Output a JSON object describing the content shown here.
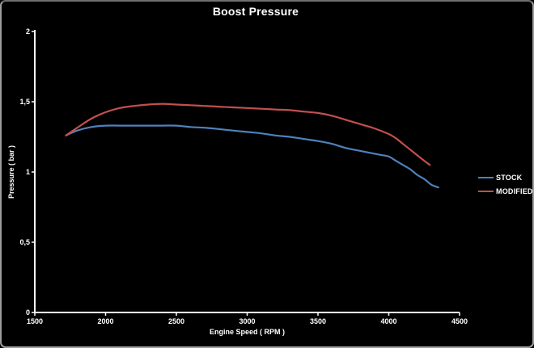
{
  "window": {
    "background": "#000000",
    "border_color": "#9d9d9d",
    "text_color": "#ffffff"
  },
  "chart_data": {
    "type": "line",
    "title": "Boost Pressure",
    "xlabel": "Engine Speed ( RPM )",
    "ylabel": "Pressure ( bar )",
    "xlim": [
      1500,
      4500
    ],
    "ylim": [
      0,
      2
    ],
    "grid": false,
    "legend_position": "right",
    "axis_color": "#ffffff",
    "x_ticks": [
      {
        "value": 1500,
        "label": "1500"
      },
      {
        "value": 2000,
        "label": "2000"
      },
      {
        "value": 2500,
        "label": "2500"
      },
      {
        "value": 3000,
        "label": "3000"
      },
      {
        "value": 3500,
        "label": "3500"
      },
      {
        "value": 4000,
        "label": "4000"
      },
      {
        "value": 4500,
        "label": "4500"
      }
    ],
    "y_ticks": [
      {
        "value": 0,
        "label": "0"
      },
      {
        "value": 0.5,
        "label": "0,5"
      },
      {
        "value": 1,
        "label": "1"
      },
      {
        "value": 1.5,
        "label": "1,5"
      },
      {
        "value": 2,
        "label": "2"
      }
    ],
    "series": [
      {
        "name": "STOCK",
        "color": "#4F81BD",
        "points": [
          [
            1720,
            1.26
          ],
          [
            1800,
            1.295
          ],
          [
            1900,
            1.32
          ],
          [
            2000,
            1.33
          ],
          [
            2100,
            1.33
          ],
          [
            2200,
            1.33
          ],
          [
            2300,
            1.33
          ],
          [
            2400,
            1.33
          ],
          [
            2500,
            1.33
          ],
          [
            2600,
            1.32
          ],
          [
            2700,
            1.315
          ],
          [
            2800,
            1.305
          ],
          [
            2900,
            1.295
          ],
          [
            3000,
            1.285
          ],
          [
            3100,
            1.275
          ],
          [
            3200,
            1.26
          ],
          [
            3300,
            1.25
          ],
          [
            3400,
            1.235
          ],
          [
            3500,
            1.22
          ],
          [
            3600,
            1.2
          ],
          [
            3700,
            1.17
          ],
          [
            3800,
            1.15
          ],
          [
            3900,
            1.13
          ],
          [
            3950,
            1.12
          ],
          [
            4000,
            1.11
          ],
          [
            4050,
            1.08
          ],
          [
            4100,
            1.05
          ],
          [
            4150,
            1.02
          ],
          [
            4200,
            0.98
          ],
          [
            4250,
            0.95
          ],
          [
            4300,
            0.91
          ],
          [
            4350,
            0.89
          ]
        ]
      },
      {
        "name": "MODIFIED",
        "color": "#C0504D",
        "points": [
          [
            1720,
            1.26
          ],
          [
            1800,
            1.315
          ],
          [
            1900,
            1.38
          ],
          [
            2000,
            1.425
          ],
          [
            2100,
            1.455
          ],
          [
            2200,
            1.47
          ],
          [
            2300,
            1.48
          ],
          [
            2400,
            1.485
          ],
          [
            2500,
            1.48
          ],
          [
            2600,
            1.475
          ],
          [
            2700,
            1.47
          ],
          [
            2800,
            1.465
          ],
          [
            2900,
            1.46
          ],
          [
            3000,
            1.455
          ],
          [
            3100,
            1.45
          ],
          [
            3200,
            1.445
          ],
          [
            3300,
            1.44
          ],
          [
            3400,
            1.43
          ],
          [
            3500,
            1.42
          ],
          [
            3600,
            1.4
          ],
          [
            3700,
            1.37
          ],
          [
            3800,
            1.34
          ],
          [
            3900,
            1.31
          ],
          [
            4000,
            1.27
          ],
          [
            4050,
            1.24
          ],
          [
            4100,
            1.2
          ],
          [
            4150,
            1.16
          ],
          [
            4200,
            1.12
          ],
          [
            4250,
            1.08
          ],
          [
            4290,
            1.05
          ]
        ]
      }
    ]
  }
}
